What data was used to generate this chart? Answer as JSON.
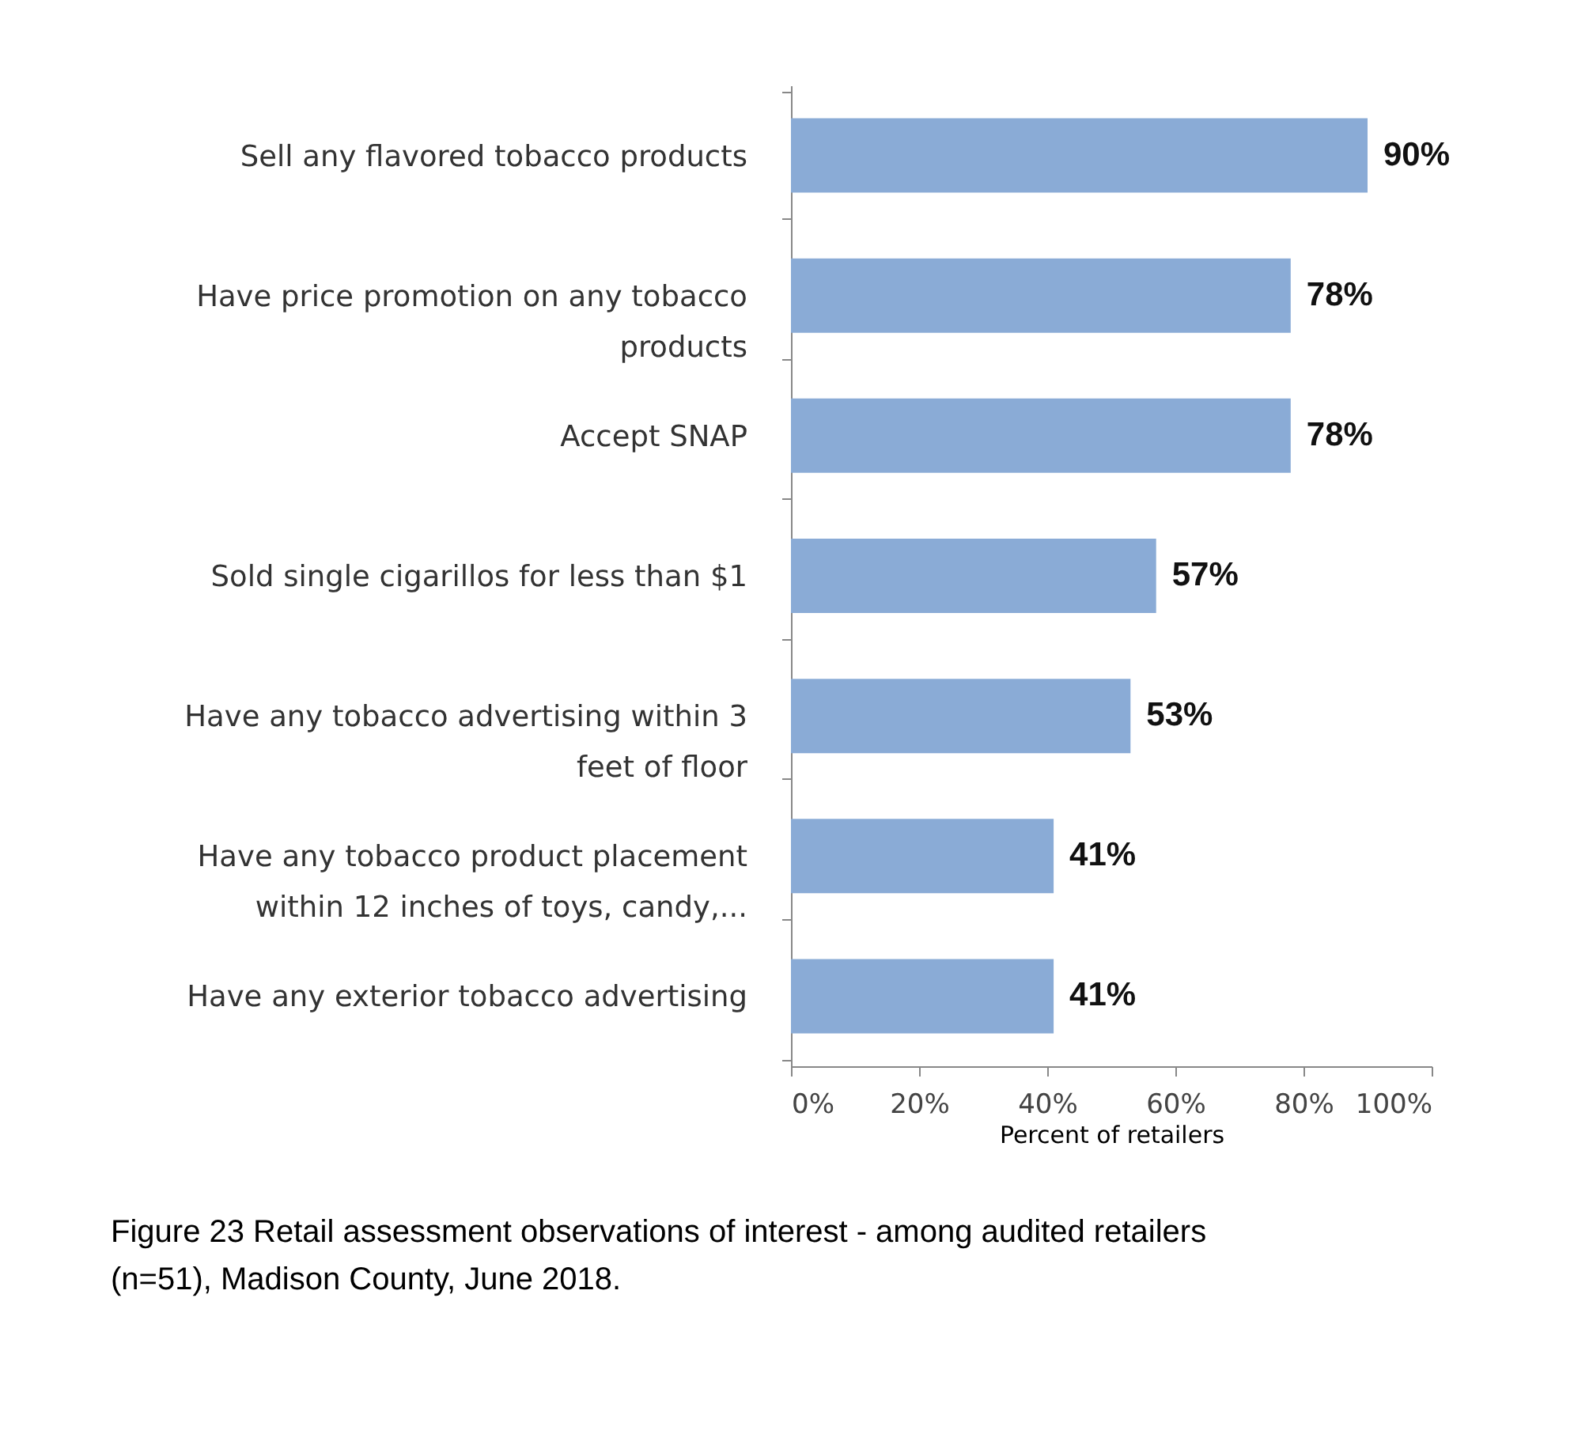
{
  "chart_data": {
    "type": "bar",
    "orientation": "horizontal",
    "xlabel": "Percent of retailers",
    "categories": [
      "Sell any flavored tobacco products",
      "Have price promotion on any tobacco products",
      "Accept SNAP",
      "Sold single cigarillos for less than $1",
      "Have any tobacco advertising within 3 feet of floor",
      "Have any tobacco product placement within 12 inches of toys, candy,...",
      "Have any exterior tobacco advertising"
    ],
    "values": [
      90,
      78,
      78,
      57,
      53,
      41,
      41
    ],
    "value_labels": [
      "90%",
      "78%",
      "78%",
      "57%",
      "53%",
      "41%",
      "41%"
    ],
    "color": "#8aabd6",
    "xlim": [
      0,
      100
    ],
    "xticks": [
      {
        "value": 0,
        "label": "0%"
      },
      {
        "value": 20,
        "label": "20%"
      },
      {
        "value": 40,
        "label": "40%"
      },
      {
        "value": 60,
        "label": "60%"
      },
      {
        "value": 80,
        "label": "80%"
      },
      {
        "value": 100,
        "label": "100%"
      }
    ],
    "grid": false,
    "annotations": [
      "Figure 23 Retail assessment observations of interest - among audited retailers (n=51), Madison County, June 2018."
    ]
  }
}
